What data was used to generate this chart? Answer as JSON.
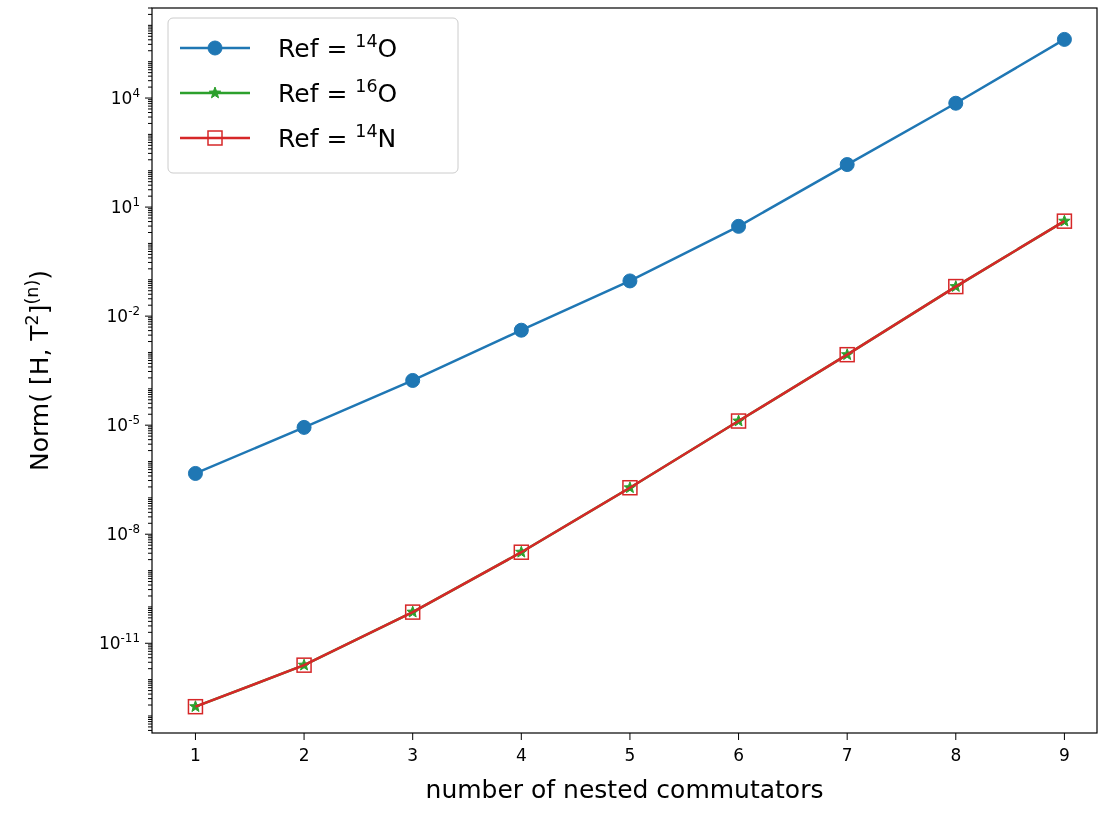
{
  "chart_data": {
    "type": "line",
    "xlabel": "number of nested commutators",
    "ylabel": "Norm( [H, T$^{2}$]$^{(n)}$)",
    "x": [
      1,
      2,
      3,
      4,
      5,
      6,
      7,
      8,
      9
    ],
    "log": "y",
    "xlim": [
      0.6,
      9.3
    ],
    "xticks": [
      1,
      2,
      3,
      4,
      5,
      6,
      7,
      8,
      9
    ],
    "ylim": [
      3.4e-14,
      3000000.0
    ],
    "yticks": [
      {
        "value": 1e-11,
        "label": "10$^{-11}$"
      },
      {
        "value": 1e-08,
        "label": "10$^{-8}$"
      },
      {
        "value": 1e-05,
        "label": "10$^{-5}$"
      },
      {
        "value": 0.01,
        "label": "10$^{-2}$"
      },
      {
        "value": 10,
        "label": "10$^{1}$"
      },
      {
        "value": 10000.0,
        "label": "10$^{4}$"
      }
    ],
    "legend": "top left",
    "grid": false,
    "series": [
      {
        "name": "Ref = $^{14}$O",
        "color": "#1f77b4",
        "marker": "circle",
        "values": [
          4.7e-07,
          8.7e-06,
          0.00017,
          0.0041,
          0.093,
          2.95,
          148,
          7200,
          410000.0
        ]
      },
      {
        "name": "Ref = $^{16}$O",
        "color": "#2ca02c",
        "marker": "star",
        "values": [
          1.8e-13,
          2.5e-12,
          7.2e-11,
          3.2e-09,
          1.9e-07,
          1.3e-05,
          0.00087,
          0.065,
          4.1
        ]
      },
      {
        "name": "Ref = $^{14}$N",
        "color": "#d62728",
        "marker": "square",
        "values": [
          1.8e-13,
          2.5e-12,
          7.2e-11,
          3.2e-09,
          1.9e-07,
          1.3e-05,
          0.00087,
          0.065,
          4.1
        ]
      }
    ]
  }
}
